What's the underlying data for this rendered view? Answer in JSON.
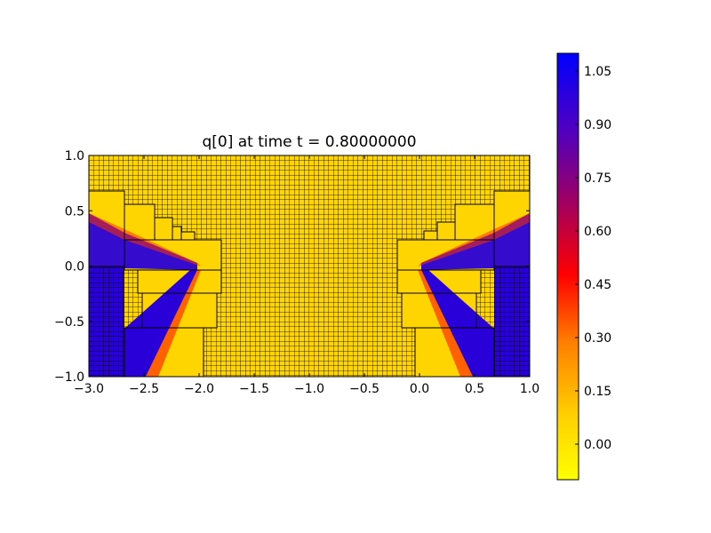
{
  "chart_data": {
    "type": "heatmap",
    "title": "q[0] at time t =      0.80000000",
    "xlabel": "",
    "ylabel": "",
    "xlim": [
      -3.0,
      1.0
    ],
    "ylim": [
      -1.0,
      1.0
    ],
    "x_ticks": [
      "−3.0",
      "−2.5",
      "−2.0",
      "−1.5",
      "−1.0",
      "−0.5",
      "0.0",
      "0.5",
      "1.0"
    ],
    "y_ticks": [
      "1.0",
      "0.5",
      "0.0",
      "−0.5",
      "−1.0"
    ],
    "grid_lines": true,
    "colorbar": {
      "range": [
        -0.1,
        1.1
      ],
      "ticks": [
        "1.05",
        "0.90",
        "0.75",
        "0.60",
        "0.45",
        "0.30",
        "0.15",
        "0.00"
      ],
      "tick_values": [
        1.05,
        0.9,
        0.75,
        0.6,
        0.45,
        0.3,
        0.15,
        0.0
      ],
      "colors": [
        "#ffff00",
        "#ffaa00",
        "#ff0000",
        "#800080",
        "#0000ff"
      ]
    },
    "regions": [
      {
        "name": "left-upper-band",
        "value": 1.0
      },
      {
        "name": "left-lower-band",
        "value": 1.0
      },
      {
        "name": "right-upper-band",
        "value": 1.0
      },
      {
        "name": "right-lower-band",
        "value": 1.0
      },
      {
        "name": "background",
        "value": 0.0
      }
    ]
  }
}
